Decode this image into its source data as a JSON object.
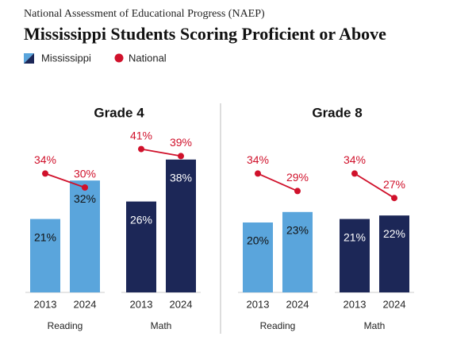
{
  "header": {
    "supertitle": "National Assessment of Educational Progress (NAEP)",
    "title": "Mississippi Students Scoring Proficient or Above"
  },
  "legend": {
    "items": [
      {
        "name": "Mississippi"
      },
      {
        "name": "National"
      }
    ]
  },
  "chart_data": [
    {
      "type": "bar",
      "title": "Grade 4",
      "ylim": [
        0,
        45
      ],
      "subplots": [
        {
          "xlabel": "Reading",
          "categories": [
            "2013",
            "2024"
          ],
          "series": [
            {
              "color": "#5aa5dc",
              "values": [
                21,
                32
              ],
              "value_labels": [
                "21%",
                "32%"
              ]
            },
            {
              "type": "line",
              "color": "#d0112b",
              "values": [
                34,
                30
              ],
              "value_labels": [
                "34%",
                "30%"
              ]
            }
          ]
        },
        {
          "xlabel": "Math",
          "categories": [
            "2013",
            "2024"
          ],
          "series": [
            {
              "color": "#1c2757",
              "values": [
                26,
                38
              ],
              "value_labels": [
                "26%",
                "38%"
              ]
            },
            {
              "type": "line",
              "color": "#d0112b",
              "values": [
                41,
                39
              ],
              "value_labels": [
                "41%",
                "39%"
              ]
            }
          ]
        }
      ]
    },
    {
      "type": "bar",
      "title": "Grade 8",
      "ylim": [
        0,
        45
      ],
      "subplots": [
        {
          "xlabel": "Reading",
          "categories": [
            "2013",
            "2024"
          ],
          "series": [
            {
              "color": "#5aa5dc",
              "values": [
                20,
                23
              ],
              "value_labels": [
                "20%",
                "23%"
              ]
            },
            {
              "type": "line",
              "color": "#d0112b",
              "values": [
                34,
                29
              ],
              "value_labels": [
                "34%",
                "29%"
              ]
            }
          ]
        },
        {
          "xlabel": "Math",
          "categories": [
            "2013",
            "2024"
          ],
          "series": [
            {
              "color": "#1c2757",
              "values": [
                21,
                22
              ],
              "value_labels": [
                "21%",
                "22%"
              ]
            },
            {
              "type": "line",
              "color": "#d0112b",
              "values": [
                34,
                27
              ],
              "value_labels": [
                "34%",
                "27%"
              ]
            }
          ]
        }
      ]
    }
  ]
}
